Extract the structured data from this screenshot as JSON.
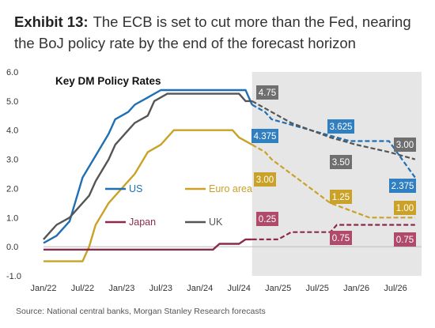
{
  "header": {
    "exhibit": "Exhibit 13:",
    "title": "The ECB is set to cut more than the Fed, nearing the BoJ policy rate by the end of the forecast horizon"
  },
  "source": "Source: National central banks, Morgan Stanley Research forecasts",
  "chart_data": {
    "type": "line",
    "title": "Key DM Policy Rates",
    "xlabel": "",
    "ylabel": "",
    "ylim": [
      -1.0,
      6.0
    ],
    "yticks": [
      "6.0",
      "5.0",
      "4.0",
      "3.0",
      "2.0",
      "1.0",
      "0.0",
      "-1.0"
    ],
    "xticks": [
      "Jan/22",
      "Jul/22",
      "Jan/23",
      "Jul/23",
      "Jan/24",
      "Jul/24",
      "Jan/25",
      "Jul/25",
      "Jan/26",
      "Jul/26"
    ],
    "xlim": [
      "2022-01",
      "2026-11"
    ],
    "forecast_start": "2024-09",
    "grid": false,
    "series": [
      {
        "name": "US",
        "color": "#1f6fb4",
        "historical": [
          [
            "2022-01",
            0.125
          ],
          [
            "2022-03",
            0.375
          ],
          [
            "2022-05",
            0.875
          ],
          [
            "2022-06",
            1.625
          ],
          [
            "2022-07",
            2.375
          ],
          [
            "2022-09",
            3.125
          ],
          [
            "2022-11",
            3.875
          ],
          [
            "2022-12",
            4.375
          ],
          [
            "2023-02",
            4.625
          ],
          [
            "2023-03",
            4.875
          ],
          [
            "2023-05",
            5.125
          ],
          [
            "2023-07",
            5.375
          ],
          [
            "2024-08",
            5.375
          ],
          [
            "2024-09",
            4.875
          ]
        ],
        "forecast": [
          [
            "2024-09",
            4.875
          ],
          [
            "2024-11",
            4.625
          ],
          [
            "2024-12",
            4.375
          ],
          [
            "2025-12",
            3.625
          ],
          [
            "2026-06",
            3.625
          ],
          [
            "2026-10",
            2.375
          ]
        ]
      },
      {
        "name": "Euro area",
        "color": "#c9a227",
        "historical": [
          [
            "2022-01",
            -0.5
          ],
          [
            "2022-07",
            -0.5
          ],
          [
            "2022-08",
            0.0
          ],
          [
            "2022-09",
            0.75
          ],
          [
            "2022-11",
            1.5
          ],
          [
            "2023-01",
            2.0
          ],
          [
            "2023-03",
            2.5
          ],
          [
            "2023-05",
            3.25
          ],
          [
            "2023-07",
            3.5
          ],
          [
            "2023-09",
            4.0
          ],
          [
            "2024-06",
            4.0
          ],
          [
            "2024-07",
            3.75
          ],
          [
            "2024-09",
            3.5
          ]
        ],
        "forecast": [
          [
            "2024-09",
            3.5
          ],
          [
            "2024-11",
            3.25
          ],
          [
            "2024-12",
            3.0
          ],
          [
            "2025-03",
            2.5
          ],
          [
            "2025-06",
            2.0
          ],
          [
            "2025-09",
            1.5
          ],
          [
            "2025-12",
            1.25
          ],
          [
            "2026-03",
            1.0
          ],
          [
            "2026-10",
            1.0
          ]
        ]
      },
      {
        "name": "Japan",
        "color": "#8c2a4c",
        "historical": [
          [
            "2022-01",
            -0.1
          ],
          [
            "2024-03",
            -0.1
          ],
          [
            "2024-04",
            0.1
          ],
          [
            "2024-07",
            0.1
          ],
          [
            "2024-08",
            0.25
          ],
          [
            "2024-09",
            0.25
          ]
        ],
        "forecast": [
          [
            "2024-09",
            0.25
          ],
          [
            "2025-01",
            0.25
          ],
          [
            "2025-03",
            0.5
          ],
          [
            "2025-09",
            0.5
          ],
          [
            "2025-10",
            0.75
          ],
          [
            "2026-10",
            0.75
          ]
        ]
      },
      {
        "name": "UK",
        "color": "#555555",
        "historical": [
          [
            "2022-01",
            0.25
          ],
          [
            "2022-02",
            0.5
          ],
          [
            "2022-03",
            0.75
          ],
          [
            "2022-05",
            1.0
          ],
          [
            "2022-06",
            1.25
          ],
          [
            "2022-08",
            1.75
          ],
          [
            "2022-09",
            2.25
          ],
          [
            "2022-11",
            3.0
          ],
          [
            "2022-12",
            3.5
          ],
          [
            "2023-02",
            4.0
          ],
          [
            "2023-03",
            4.25
          ],
          [
            "2023-05",
            4.5
          ],
          [
            "2023-06",
            5.0
          ],
          [
            "2023-08",
            5.25
          ],
          [
            "2024-07",
            5.25
          ],
          [
            "2024-08",
            5.0
          ],
          [
            "2024-09",
            5.0
          ]
        ],
        "forecast": [
          [
            "2024-09",
            5.0
          ],
          [
            "2024-11",
            4.75
          ],
          [
            "2025-03",
            4.25
          ],
          [
            "2025-09",
            3.75
          ],
          [
            "2026-01",
            3.5
          ],
          [
            "2026-06",
            3.25
          ],
          [
            "2026-10",
            3.0
          ]
        ]
      }
    ],
    "labels": [
      {
        "text": "4.75",
        "series": "UK",
        "date": "2024-11",
        "value": 4.75
      },
      {
        "text": "4.375",
        "series": "US",
        "date": "2024-12",
        "value": 4.375
      },
      {
        "text": "3.00",
        "series": "Euro area",
        "date": "2024-12",
        "value": 3.0
      },
      {
        "text": "0.25",
        "series": "Japan",
        "date": "2024-12",
        "value": 0.25
      },
      {
        "text": "3.625",
        "series": "US",
        "date": "2025-12",
        "value": 3.625
      },
      {
        "text": "3.50",
        "series": "UK",
        "date": "2025-12",
        "value": 3.5
      },
      {
        "text": "1.25",
        "series": "Euro area",
        "date": "2025-12",
        "value": 1.25
      },
      {
        "text": "0.75",
        "series": "Japan",
        "date": "2025-12",
        "value": 0.75
      },
      {
        "text": "3.00",
        "series": "UK",
        "date": "2026-10",
        "value": 3.0
      },
      {
        "text": "2.375",
        "series": "US",
        "date": "2026-10",
        "value": 2.375
      },
      {
        "text": "1.00",
        "series": "Euro area",
        "date": "2026-10",
        "value": 1.0
      },
      {
        "text": "0.75",
        "series": "Japan",
        "date": "2026-10",
        "value": 0.75
      }
    ]
  }
}
